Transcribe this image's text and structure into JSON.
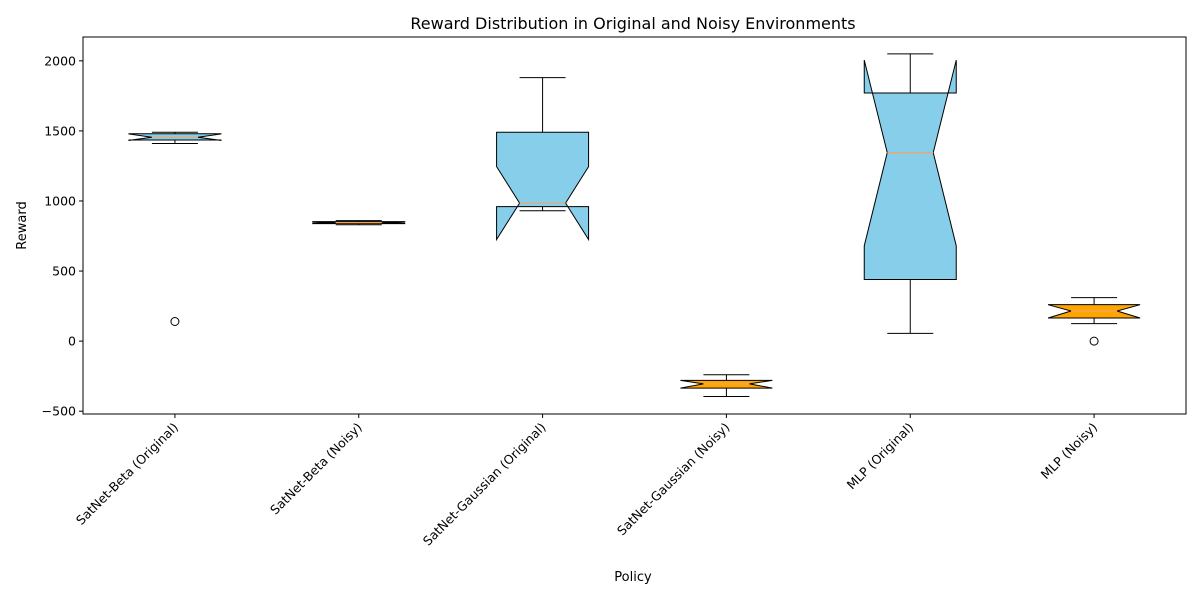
{
  "chart_data": {
    "type": "boxplot",
    "title": "Reward Distribution in Original and Noisy Environments",
    "xlabel": "Policy",
    "ylabel": "Reward",
    "ylim": [
      -520,
      2170
    ],
    "yticks": [
      -500,
      0,
      500,
      1000,
      1500,
      2000
    ],
    "notched": true,
    "grid": false,
    "colors": {
      "original": "#87ceeb",
      "noisy": "#ffa500",
      "median": "#f4a460",
      "edge": "#000000"
    },
    "categories": [
      "SatNet-Beta (Original)",
      "SatNet-Beta (Noisy)",
      "SatNet-Gaussian (Original)",
      "SatNet-Gaussian (Noisy)",
      "MLP (Original)",
      "MLP (Noisy)"
    ],
    "boxes": [
      {
        "category": "SatNet-Beta (Original)",
        "environment": "original",
        "whisker_low": 1410,
        "q1": 1435,
        "median": 1455,
        "q3": 1480,
        "whisker_high": 1490,
        "notch_low": 1432,
        "notch_high": 1478,
        "outliers": [
          140
        ]
      },
      {
        "category": "SatNet-Beta (Noisy)",
        "environment": "noisy",
        "whisker_low": 830,
        "q1": 838,
        "median": 845,
        "q3": 853,
        "whisker_high": 860,
        "notch_low": 840,
        "notch_high": 850,
        "outliers": []
      },
      {
        "category": "SatNet-Gaussian (Original)",
        "environment": "original",
        "whisker_low": 930,
        "q1": 960,
        "median": 985,
        "q3": 1490,
        "whisker_high": 1880,
        "notch_low": 725,
        "notch_high": 1245,
        "outliers": []
      },
      {
        "category": "SatNet-Gaussian (Noisy)",
        "environment": "noisy",
        "whisker_low": -395,
        "q1": -335,
        "median": -305,
        "q3": -280,
        "whisker_high": -240,
        "notch_low": -335,
        "notch_high": -280,
        "outliers": []
      },
      {
        "category": "MLP (Original)",
        "environment": "original",
        "whisker_low": 55,
        "q1": 440,
        "median": 1345,
        "q3": 1770,
        "whisker_high": 2050,
        "notch_low": 680,
        "notch_high": 2005,
        "outliers": []
      },
      {
        "category": "MLP (Noisy)",
        "environment": "noisy",
        "whisker_low": 125,
        "q1": 165,
        "median": 215,
        "q3": 260,
        "whisker_high": 310,
        "notch_low": 165,
        "notch_high": 260,
        "outliers": [
          0
        ]
      }
    ]
  }
}
